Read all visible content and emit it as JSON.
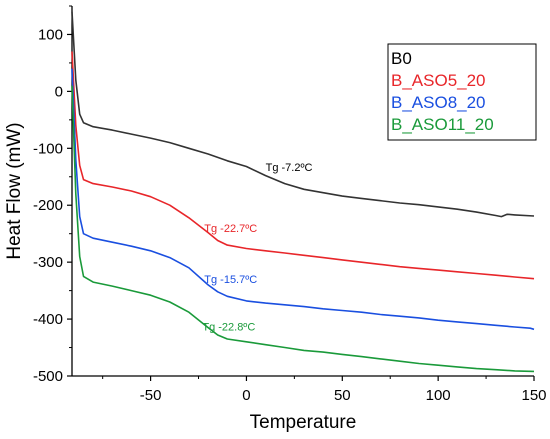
{
  "chart_data": {
    "type": "line",
    "xlabel": "Temperature",
    "ylabel": "Heat Flow (mW)",
    "xlim": [
      -91,
      150
    ],
    "ylim": [
      -500,
      150
    ],
    "x_ticks": [
      -50,
      0,
      50,
      100,
      150
    ],
    "y_ticks": [
      -500,
      -400,
      -300,
      -200,
      -100,
      0,
      100
    ],
    "grid": false,
    "legend_position": "top-right",
    "series": [
      {
        "name": "B0",
        "color": "#333333",
        "points": [
          [
            -91,
            140
          ],
          [
            -89,
            20
          ],
          [
            -87,
            -40
          ],
          [
            -85,
            -55
          ],
          [
            -80,
            -62
          ],
          [
            -70,
            -68
          ],
          [
            -60,
            -75
          ],
          [
            -50,
            -82
          ],
          [
            -40,
            -90
          ],
          [
            -30,
            -100
          ],
          [
            -20,
            -110
          ],
          [
            -10,
            -122
          ],
          [
            0,
            -132
          ],
          [
            10,
            -148
          ],
          [
            20,
            -162
          ],
          [
            30,
            -172
          ],
          [
            40,
            -178
          ],
          [
            50,
            -184
          ],
          [
            60,
            -188
          ],
          [
            70,
            -192
          ],
          [
            80,
            -196
          ],
          [
            90,
            -199
          ],
          [
            100,
            -203
          ],
          [
            110,
            -207
          ],
          [
            120,
            -212
          ],
          [
            130,
            -218
          ],
          [
            133,
            -220
          ],
          [
            136,
            -216
          ],
          [
            140,
            -217
          ],
          [
            150,
            -219
          ]
        ]
      },
      {
        "name": "B_ASO5_20",
        "color": "#e8262a",
        "points": [
          [
            -91,
            70
          ],
          [
            -89,
            -60
          ],
          [
            -87,
            -130
          ],
          [
            -85,
            -155
          ],
          [
            -80,
            -162
          ],
          [
            -70,
            -168
          ],
          [
            -60,
            -175
          ],
          [
            -50,
            -185
          ],
          [
            -40,
            -200
          ],
          [
            -30,
            -222
          ],
          [
            -20,
            -248
          ],
          [
            -15,
            -262
          ],
          [
            -10,
            -270
          ],
          [
            0,
            -276
          ],
          [
            10,
            -280
          ],
          [
            20,
            -284
          ],
          [
            30,
            -288
          ],
          [
            40,
            -292
          ],
          [
            50,
            -296
          ],
          [
            60,
            -300
          ],
          [
            70,
            -304
          ],
          [
            80,
            -308
          ],
          [
            90,
            -311
          ],
          [
            100,
            -314
          ],
          [
            110,
            -317
          ],
          [
            120,
            -320
          ],
          [
            130,
            -323
          ],
          [
            140,
            -326
          ],
          [
            150,
            -329
          ]
        ]
      },
      {
        "name": "B_ASO8_20",
        "color": "#1a4fe0",
        "points": [
          [
            -91,
            40
          ],
          [
            -89,
            -120
          ],
          [
            -87,
            -220
          ],
          [
            -85,
            -250
          ],
          [
            -80,
            -258
          ],
          [
            -70,
            -265
          ],
          [
            -60,
            -272
          ],
          [
            -50,
            -280
          ],
          [
            -40,
            -292
          ],
          [
            -30,
            -310
          ],
          [
            -20,
            -340
          ],
          [
            -15,
            -352
          ],
          [
            -10,
            -360
          ],
          [
            0,
            -368
          ],
          [
            10,
            -372
          ],
          [
            20,
            -375
          ],
          [
            30,
            -378
          ],
          [
            40,
            -382
          ],
          [
            50,
            -385
          ],
          [
            60,
            -388
          ],
          [
            70,
            -392
          ],
          [
            80,
            -395
          ],
          [
            90,
            -398
          ],
          [
            100,
            -402
          ],
          [
            110,
            -405
          ],
          [
            120,
            -408
          ],
          [
            130,
            -411
          ],
          [
            140,
            -414
          ],
          [
            148,
            -416
          ],
          [
            150,
            -418
          ]
        ]
      },
      {
        "name": "B_ASO11_20",
        "color": "#1a9a3a",
        "points": [
          [
            -91,
            10
          ],
          [
            -89,
            -180
          ],
          [
            -87,
            -290
          ],
          [
            -85,
            -325
          ],
          [
            -80,
            -335
          ],
          [
            -70,
            -342
          ],
          [
            -60,
            -350
          ],
          [
            -50,
            -358
          ],
          [
            -40,
            -370
          ],
          [
            -30,
            -388
          ],
          [
            -20,
            -415
          ],
          [
            -15,
            -428
          ],
          [
            -10,
            -435
          ],
          [
            0,
            -440
          ],
          [
            10,
            -445
          ],
          [
            20,
            -450
          ],
          [
            30,
            -455
          ],
          [
            40,
            -458
          ],
          [
            50,
            -462
          ],
          [
            60,
            -466
          ],
          [
            70,
            -470
          ],
          [
            80,
            -474
          ],
          [
            90,
            -478
          ],
          [
            100,
            -481
          ],
          [
            110,
            -484
          ],
          [
            120,
            -487
          ],
          [
            130,
            -489
          ],
          [
            140,
            -491
          ],
          [
            150,
            -492
          ]
        ]
      }
    ],
    "annotations": [
      {
        "text": "Tg -7.2ºC",
        "x": 10,
        "y": -140,
        "series": "B0"
      },
      {
        "text": "Tg -22.7ºC",
        "x": -22,
        "y": -247,
        "series": "B_ASO5_20"
      },
      {
        "text": "Tg -15.7ºC",
        "x": -22,
        "y": -337,
        "series": "B_ASO8_20"
      },
      {
        "text": "Tg -22.8ºC",
        "x": -23,
        "y": -420,
        "series": "B_ASO11_20"
      }
    ]
  }
}
